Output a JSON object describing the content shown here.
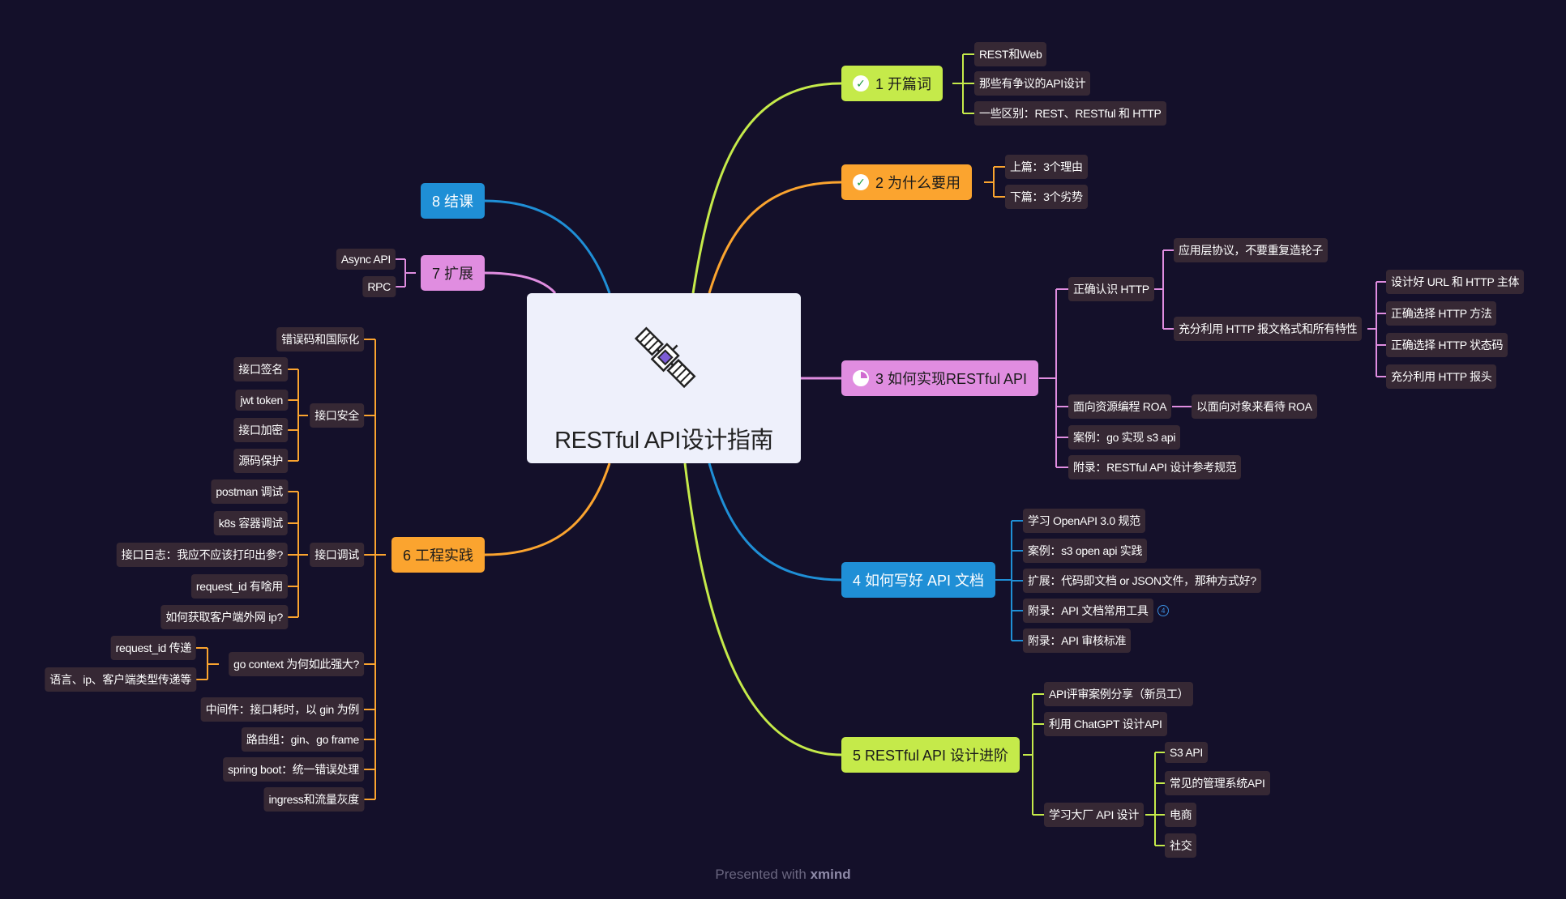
{
  "center": {
    "title": "RESTful API设计指南"
  },
  "footer": {
    "presented": "Presented with",
    "brand": "xmind"
  },
  "colors": {
    "lime": "#c5ea4a",
    "orange": "#fba42f",
    "pink": "#e08de0",
    "blue": "#1f8fd6",
    "leaf_bg": "#362834",
    "background": "#14102a"
  },
  "icons": {
    "center": "satellite-icon",
    "completed": "check-icon",
    "progress": "progress-pie-icon",
    "collapsed_count": "collapsed-count-badge"
  },
  "branches": {
    "b1": {
      "label": "1 开篇词",
      "status": "completed",
      "children": [
        "REST和Web",
        "那些有争议的API设计",
        "一些区别：REST、RESTful 和 HTTP"
      ]
    },
    "b2": {
      "label": "2 为什么要用",
      "status": "completed",
      "children": [
        "上篇：3个理由",
        "下篇：3个劣势"
      ]
    },
    "b3": {
      "label": "3 如何实现RESTful API",
      "status": "in-progress",
      "http": "正确认识 HTTP",
      "http_children": [
        "应用层协议，不要重复造轮子",
        "充分利用 HTTP 报文格式和所有特性"
      ],
      "http_features": [
        "设计好 URL 和 HTTP 主体",
        "正确选择 HTTP 方法",
        "正确选择 HTTP 状态码",
        "充分利用 HTTP 报头"
      ],
      "roa": "面向资源编程 ROA",
      "roa_child": "以面向对象来看待 ROA",
      "case": "案例：go 实现 s3 api",
      "appendix": "附录：RESTful API 设计参考规范"
    },
    "b4": {
      "label": "4 如何写好 API 文档",
      "children": [
        "学习 OpenAPI 3.0 规范",
        "案例：s3 open api 实践",
        "扩展：代码即文档 or JSON文件，那种方式好?",
        "附录：API 文档常用工具",
        "附录：API 审核标准"
      ],
      "collapsed_count": "4"
    },
    "b5": {
      "label": "5 RESTful API 设计进阶",
      "children": [
        "API评审案例分享（新员工）",
        "利用 ChatGPT 设计API"
      ],
      "big": "学习大厂 API 设计",
      "big_children": [
        "S3 API",
        "常见的管理系统API",
        "电商",
        "社交"
      ]
    },
    "b6": {
      "label": "6 工程实践",
      "error_i18n": "错误码和国际化",
      "security": "接口安全",
      "security_children": [
        "接口签名",
        "jwt token",
        "接口加密",
        "源码保护"
      ],
      "debug": "接口调试",
      "debug_children": [
        "postman 调试",
        "k8s 容器调试",
        "接口日志：我应不应该打印出参?",
        "request_id 有啥用",
        "如何获取客户端外网 ip?"
      ],
      "context": "go context 为何如此强大?",
      "context_children": [
        "request_id 传递",
        "语言、ip、客户端类型传递等"
      ],
      "others": [
        "中间件：接口耗时，以 gin 为例",
        "路由组：gin、go frame",
        "spring boot：统一错误处理",
        "ingress和流量灰度"
      ]
    },
    "b7": {
      "label": "7 扩展",
      "children": [
        "Async API",
        "RPC"
      ]
    },
    "b8": {
      "label": "8 结课"
    }
  }
}
